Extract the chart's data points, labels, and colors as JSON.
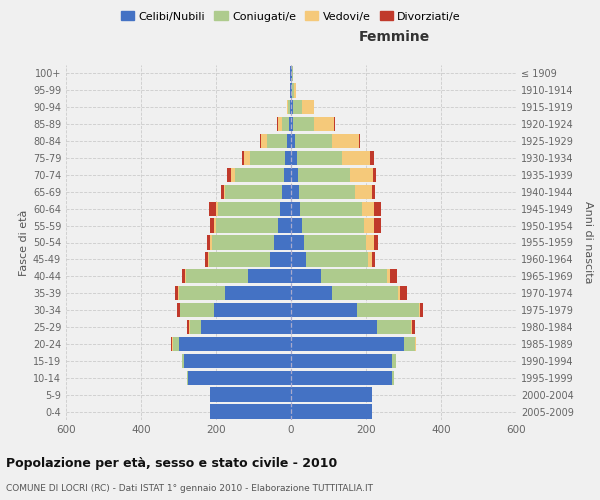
{
  "age_groups": [
    "0-4",
    "5-9",
    "10-14",
    "15-19",
    "20-24",
    "25-29",
    "30-34",
    "35-39",
    "40-44",
    "45-49",
    "50-54",
    "55-59",
    "60-64",
    "65-69",
    "70-74",
    "75-79",
    "80-84",
    "85-89",
    "90-94",
    "95-99",
    "100+"
  ],
  "birth_years": [
    "2005-2009",
    "2000-2004",
    "1995-1999",
    "1990-1994",
    "1985-1989",
    "1980-1984",
    "1975-1979",
    "1970-1974",
    "1965-1969",
    "1960-1964",
    "1955-1959",
    "1950-1954",
    "1945-1949",
    "1940-1944",
    "1935-1939",
    "1930-1934",
    "1925-1929",
    "1920-1924",
    "1915-1919",
    "1910-1914",
    "≤ 1909"
  ],
  "males": {
    "celibi": [
      215,
      215,
      275,
      285,
      300,
      240,
      205,
      175,
      115,
      55,
      45,
      35,
      30,
      25,
      20,
      15,
      10,
      5,
      3,
      2,
      2
    ],
    "coniugati": [
      2,
      2,
      2,
      5,
      15,
      30,
      90,
      125,
      165,
      165,
      165,
      165,
      165,
      150,
      130,
      95,
      55,
      20,
      5,
      2,
      2
    ],
    "vedovi": [
      0,
      0,
      0,
      0,
      2,
      2,
      2,
      2,
      2,
      2,
      5,
      5,
      5,
      5,
      10,
      15,
      15,
      10,
      3,
      0,
      0
    ],
    "divorziati": [
      0,
      0,
      0,
      0,
      2,
      5,
      8,
      8,
      8,
      8,
      10,
      12,
      20,
      8,
      10,
      5,
      2,
      2,
      0,
      0,
      0
    ]
  },
  "females": {
    "nubili": [
      215,
      215,
      270,
      270,
      300,
      230,
      175,
      110,
      80,
      40,
      35,
      30,
      25,
      20,
      18,
      15,
      10,
      5,
      5,
      2,
      2
    ],
    "coniugate": [
      2,
      2,
      5,
      10,
      30,
      90,
      165,
      175,
      175,
      165,
      165,
      165,
      165,
      150,
      140,
      120,
      100,
      55,
      25,
      5,
      2
    ],
    "vedove": [
      0,
      0,
      0,
      0,
      2,
      2,
      3,
      5,
      8,
      10,
      20,
      25,
      30,
      45,
      60,
      75,
      70,
      55,
      30,
      5,
      0
    ],
    "divorziate": [
      0,
      0,
      0,
      0,
      2,
      8,
      10,
      20,
      20,
      10,
      12,
      20,
      20,
      8,
      8,
      10,
      5,
      2,
      2,
      0,
      0
    ]
  },
  "colors": {
    "celibi": "#4472C4",
    "coniugati": "#AECB8D",
    "vedovi": "#F5C97A",
    "divorziati": "#C0392B"
  },
  "xlim": 600,
  "title": "Popolazione per età, sesso e stato civile - 2010",
  "subtitle": "COMUNE DI LOCRI (RC) - Dati ISTAT 1° gennaio 2010 - Elaborazione TUTTITALIA.IT",
  "xlabel_right": "Femmine",
  "ylabel_left": "Fasce di età",
  "ylabel_right": "Anni di nascita",
  "legend_labels": [
    "Celibi/Nubili",
    "Coniugati/e",
    "Vedovi/e",
    "Divorziati/e"
  ],
  "background_color": "#f0f0f0"
}
